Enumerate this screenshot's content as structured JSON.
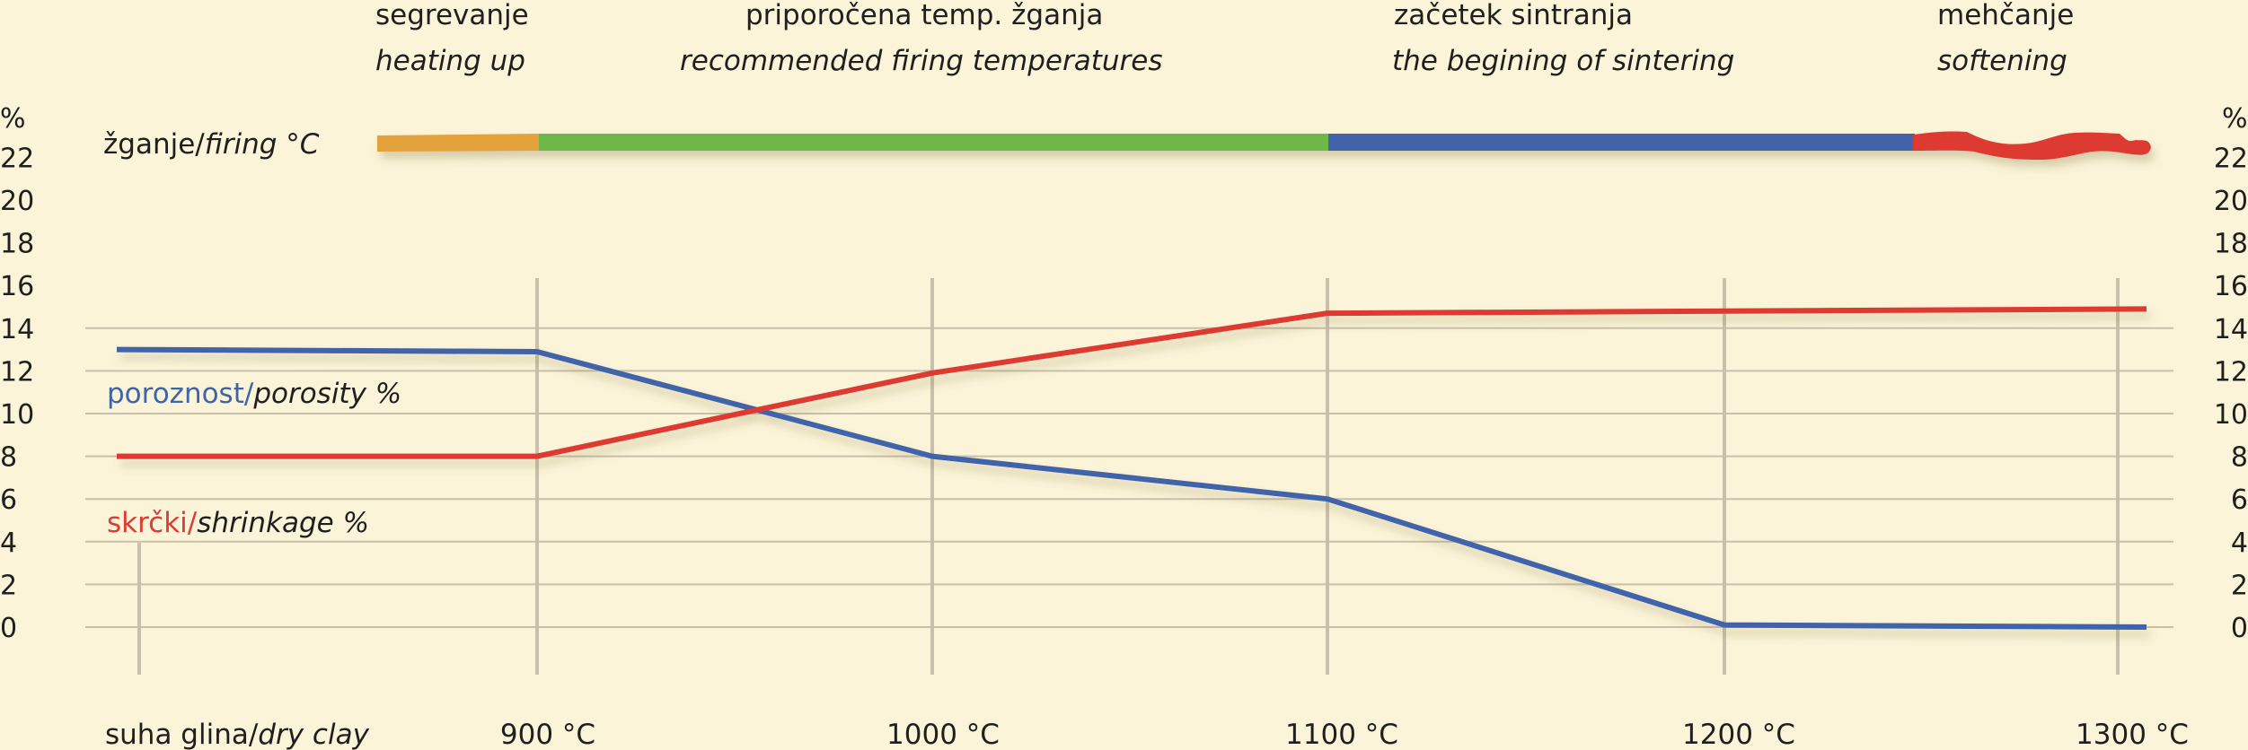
{
  "phases": [
    {
      "sl": "segrevanje",
      "en": "heating up"
    },
    {
      "sl": "priporočena temp. žganja",
      "en": "recommended firing temperatures"
    },
    {
      "sl": "začetek sintranja",
      "en": "the begining of sintering"
    },
    {
      "sl": "mehčanje",
      "en": "softening"
    }
  ],
  "firing_bar": {
    "label_sl": "žganje/",
    "label_en": "firing °C",
    "segments": [
      {
        "phase": "segrevanje",
        "color": "#e4a23e"
      },
      {
        "phase": "priporočena temp. žganja",
        "color": "#6db84a"
      },
      {
        "phase": "začetek sintranja",
        "color": "#3f64a9"
      },
      {
        "phase": "mehčanje",
        "color": "#dd3b33"
      }
    ]
  },
  "colors": {
    "background": "#fbf4d8",
    "porosity": "#3f64a9",
    "shrinkage": "#dd3b33",
    "grid": "#c9c0ac"
  },
  "chart_data": {
    "type": "line",
    "x_categories": [
      "suha glina/dry clay",
      "900 °C",
      "1000 °C",
      "1100 °C",
      "1200 °C",
      "1300 °C"
    ],
    "xlabel": "",
    "ylabel_left": "%",
    "ylabel_right": "%",
    "yticks": [
      0,
      2,
      4,
      6,
      8,
      10,
      12,
      14,
      16,
      18,
      20,
      22
    ],
    "ylim": [
      0,
      22
    ],
    "grid": "horizontal lines 0–14, vertical lines at category positions",
    "series": [
      {
        "name_sl": "poroznost/",
        "name_en": "porosity %",
        "points": [
          {
            "x": "suha glina/dry clay",
            "y": 13
          },
          {
            "x": "900 °C",
            "y": 12.9
          },
          {
            "x": "1000 °C",
            "y": 8
          },
          {
            "x": "1100 °C",
            "y": 6
          },
          {
            "x": "1200 °C",
            "y": 0.1
          },
          {
            "x": "1300 °C",
            "y": 0
          }
        ]
      },
      {
        "name_sl": "skrčki/",
        "name_en": "shrinkage %",
        "points": [
          {
            "x": "suha glina/dry clay",
            "y": 8
          },
          {
            "x": "900 °C",
            "y": 8
          },
          {
            "x": "1000 °C",
            "y": 11.9
          },
          {
            "x": "1100 °C",
            "y": 14.7
          },
          {
            "x": "1200 °C",
            "y": 14.8
          },
          {
            "x": "1300 °C",
            "y": 14.9
          }
        ]
      }
    ]
  },
  "x_label_parts": {
    "dry_sl": "suha glina/",
    "dry_en": "dry clay",
    "t900": "900 °C",
    "t1000": "1000 °C",
    "t1100": "1100 °C",
    "t1200": "1200 °C",
    "t1300": "1300 °C"
  }
}
